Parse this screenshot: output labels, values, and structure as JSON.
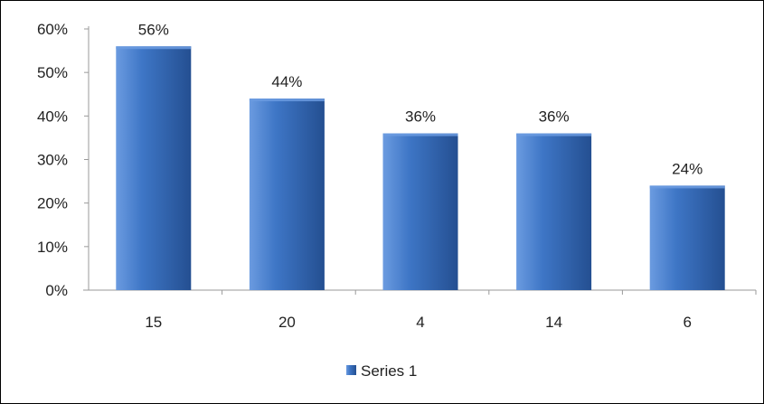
{
  "chart_data": {
    "type": "bar",
    "categories": [
      "15",
      "20",
      "4",
      "14",
      "6"
    ],
    "series": [
      {
        "name": "Series 1",
        "values": [
          56,
          44,
          36,
          36,
          24
        ],
        "data_labels": [
          "56%",
          "44%",
          "36%",
          "36%",
          "24%"
        ]
      }
    ],
    "ylim": [
      0,
      60
    ],
    "yticks": [
      0,
      10,
      20,
      30,
      40,
      50,
      60
    ],
    "ytick_labels": [
      "0%",
      "10%",
      "20%",
      "30%",
      "40%",
      "50%",
      "60%"
    ],
    "grid": false,
    "legend_position": "bottom",
    "colors": {
      "bar_light": "#6b9be0",
      "bar_mid": "#3e76c6",
      "bar_dark": "#244f91",
      "axis": "#9a9a9a"
    }
  }
}
